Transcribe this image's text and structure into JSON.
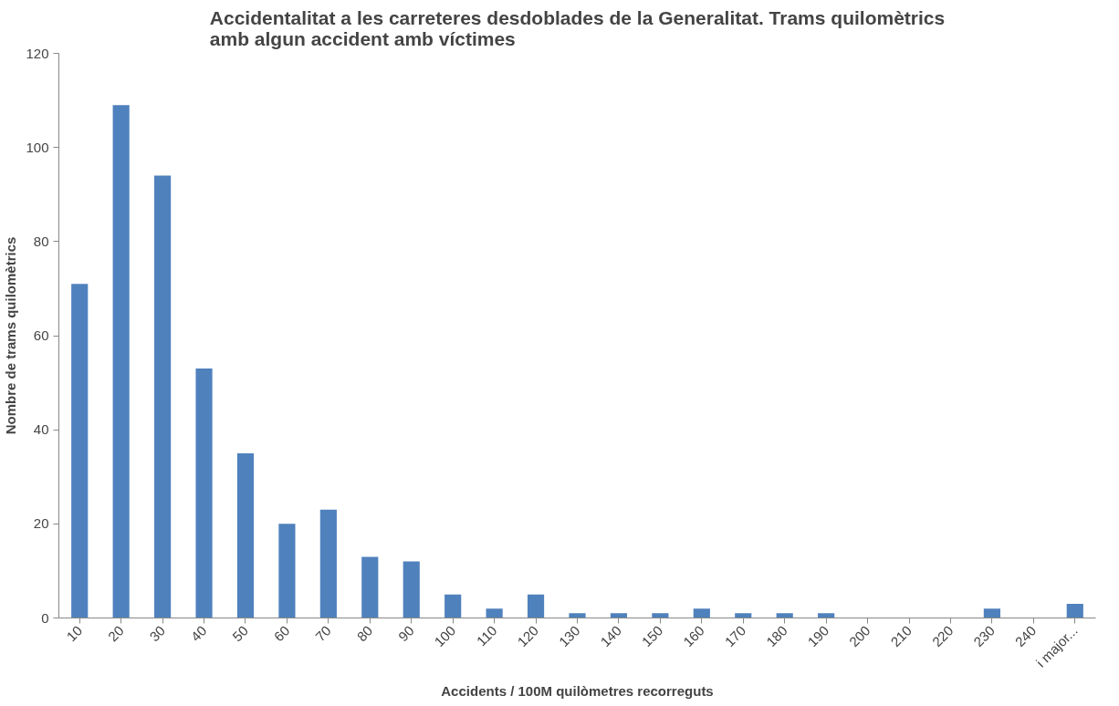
{
  "chart_data": {
    "type": "bar",
    "title": "Accidentalitat a les carreteres desdoblades de la Generalitat. Trams quilomètrics amb algun accident amb víctimes",
    "xlabel": "Accidents / 100M quilòmetres recorreguts",
    "ylabel": "Nombre de trams quilomètrics",
    "categories": [
      "10",
      "20",
      "30",
      "40",
      "50",
      "60",
      "70",
      "80",
      "90",
      "100",
      "110",
      "120",
      "130",
      "140",
      "150",
      "160",
      "170",
      "180",
      "190",
      "200",
      "210",
      "220",
      "230",
      "240",
      "i major..."
    ],
    "values": [
      71,
      109,
      94,
      53,
      35,
      20,
      23,
      13,
      12,
      5,
      2,
      5,
      1,
      1,
      1,
      2,
      1,
      1,
      1,
      0,
      0,
      0,
      2,
      0,
      3
    ],
    "color": "#4f81bd",
    "ylim": [
      0,
      120
    ],
    "yticks": [
      0,
      20,
      40,
      60,
      80,
      100,
      120
    ],
    "grid": false
  }
}
